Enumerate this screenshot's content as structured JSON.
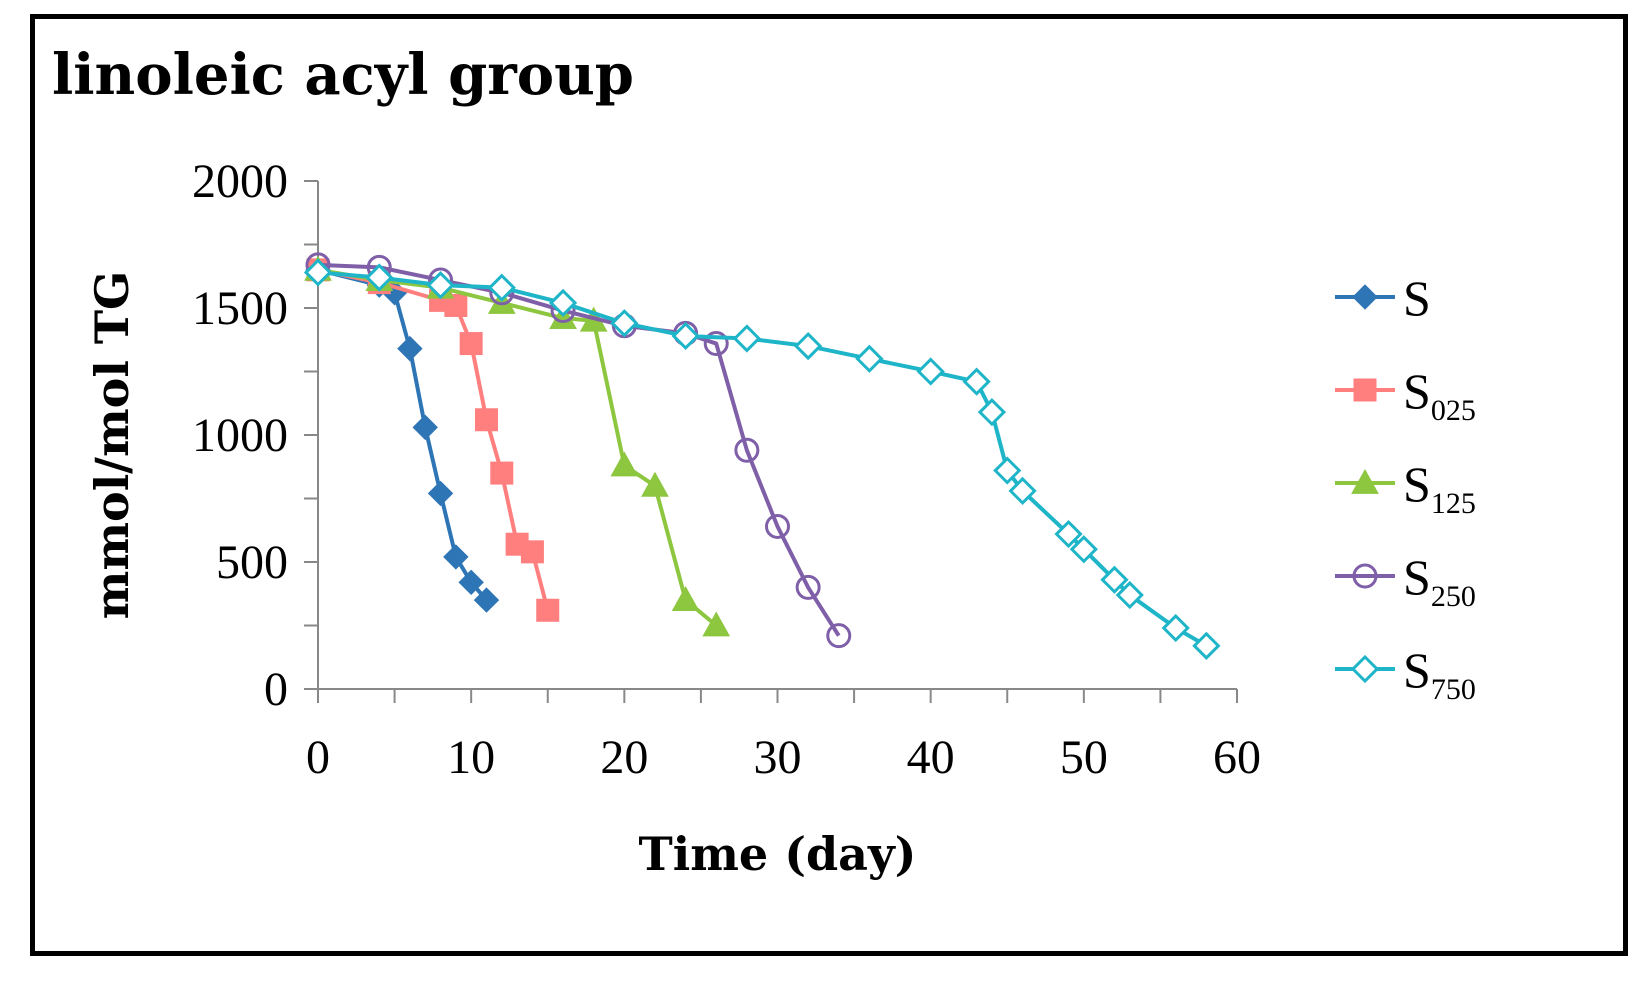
{
  "chart_data": {
    "type": "line",
    "title": "linoleic acyl group",
    "xlabel": "Time (day)",
    "ylabel": "mmol/mol TG",
    "xlim": [
      0,
      60
    ],
    "ylim": [
      0,
      2000
    ],
    "xticks": [
      0,
      10,
      20,
      30,
      40,
      50,
      60
    ],
    "yticks": [
      0,
      500,
      1000,
      1500,
      2000
    ],
    "grid": false,
    "legend_position": "right",
    "series": [
      {
        "name": "S",
        "label_base": "S",
        "label_sub": "",
        "color": "#2E75B6",
        "marker": "diamond-filled",
        "x": [
          0,
          4,
          5,
          6,
          7,
          8,
          9,
          10,
          11
        ],
        "y": [
          1650,
          1590,
          1560,
          1340,
          1030,
          770,
          520,
          420,
          350
        ]
      },
      {
        "name": "S025",
        "label_base": "S",
        "label_sub": "025",
        "color": "#FF7F7F",
        "marker": "square-filled",
        "x": [
          0,
          4,
          8,
          9,
          10,
          11,
          12,
          13,
          14,
          15
        ],
        "y": [
          1650,
          1600,
          1530,
          1510,
          1360,
          1060,
          850,
          570,
          540,
          310
        ]
      },
      {
        "name": "S125",
        "label_base": "S",
        "label_sub": "125",
        "color": "#8DC63F",
        "marker": "triangle-filled",
        "x": [
          0,
          4,
          8,
          12,
          16,
          18,
          20,
          22,
          24,
          26
        ],
        "y": [
          1650,
          1610,
          1580,
          1520,
          1460,
          1450,
          880,
          800,
          350,
          250
        ]
      },
      {
        "name": "S250",
        "label_base": "S",
        "label_sub": "250",
        "color": "#7F5FA8",
        "marker": "circle-open",
        "x": [
          0,
          4,
          8,
          12,
          16,
          20,
          24,
          26,
          28,
          30,
          32,
          34
        ],
        "y": [
          1670,
          1660,
          1610,
          1560,
          1490,
          1430,
          1400,
          1360,
          940,
          640,
          400,
          210
        ]
      },
      {
        "name": "S750",
        "label_base": "S",
        "label_sub": "750",
        "color": "#1FB5C9",
        "marker": "diamond-open",
        "x": [
          0,
          4,
          8,
          12,
          16,
          20,
          24,
          28,
          32,
          36,
          40,
          43,
          44,
          45,
          46,
          49,
          50,
          52,
          53,
          56,
          58
        ],
        "y": [
          1640,
          1620,
          1590,
          1580,
          1520,
          1440,
          1390,
          1380,
          1350,
          1300,
          1250,
          1210,
          1090,
          860,
          780,
          610,
          550,
          430,
          370,
          240,
          170
        ]
      }
    ]
  }
}
